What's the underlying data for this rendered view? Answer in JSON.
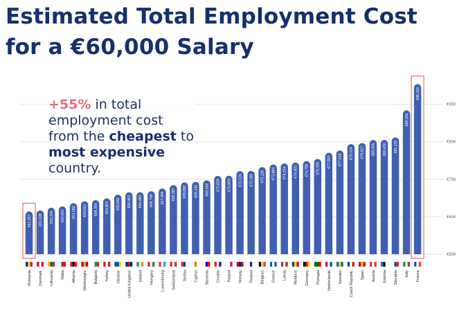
{
  "title_line1": "Estimated Total Employment Cost",
  "title_line2": "for a €60,000 Salary",
  "callout": {
    "pct": "+55%",
    "t1": " in total employment cost from the ",
    "b1": "cheapest",
    "t2": " to ",
    "b2": "most expensive",
    "t3": " country."
  },
  "colors": {
    "bar": "#3f5fb0",
    "highlight": "#e07074",
    "title": "#16306b",
    "grid": "#e6e6e6"
  },
  "chart_data": {
    "type": "bar",
    "title": "Estimated Total Employment Cost for a €60,000 Salary",
    "xlabel": "",
    "ylabel": "",
    "ylim": [
      50000,
      95000
    ],
    "yticks": [
      50000,
      60000,
      70000,
      80000,
      90000
    ],
    "ytick_labels": [
      "€50K",
      "€60K",
      "€70K",
      "€80K",
      "€90K"
    ],
    "highlighted": [
      "Romania",
      "France"
    ],
    "categories": [
      "Romania",
      "Denmark",
      "Lithuania",
      "Malta",
      "Albania",
      "Montenegro",
      "Bulgaria",
      "Turkey",
      "Ukraine",
      "United Kingdom",
      "Ireland",
      "Hungary",
      "Luxembourg",
      "Switzerland",
      "Serbia",
      "Cyprus",
      "Slovenia",
      "Croatia",
      "Poland",
      "Norway",
      "Finland",
      "Belgium",
      "Greece",
      "Latvia",
      "Moldova",
      "Germany",
      "Portugal",
      "Netherlands",
      "Sweden",
      "Czech Republic",
      "Spain",
      "Austria",
      "Estonia",
      "Slovakia",
      "Italy",
      "France"
    ],
    "values": [
      61357,
      61628,
      62346,
      62691,
      63580,
      64062,
      64354,
      64853,
      65842,
      66463,
      66490,
      66749,
      67494,
      68387,
      69090,
      69240,
      69660,
      70828,
      70869,
      72126,
      72180,
      73190,
      73884,
      74154,
      74400,
      74798,
      75350,
      77004,
      77618,
      79314,
      79617,
      80406,
      80430,
      81120,
      88326,
      95310
    ],
    "value_labels": [
      "€61,357",
      "€61,628",
      "€62,346",
      "€62,691",
      "€63,580",
      "€64,062",
      "€64,354",
      "€64,853",
      "€65,842",
      "€66,463",
      "€66,490",
      "€66,749",
      "€67,494",
      "€68,387",
      "€69,090",
      "€69,240",
      "€69,660",
      "€70,828",
      "€70,869",
      "€72,126",
      "€72,180",
      "€73,190",
      "€73,884",
      "€74,154",
      "€74,400",
      "€74,798",
      "€75,350",
      "€77,004",
      "€77,618",
      "€79,314",
      "€79,617",
      "€80,406",
      "€80,430",
      "€81,120",
      "€88,326",
      "€95,310"
    ],
    "flags": [
      [
        "#002b7f",
        "#fcd116",
        "#ce1126"
      ],
      [
        "#c8102e",
        "#ffffff",
        "#c8102e"
      ],
      [
        "#fdb913",
        "#006a44",
        "#c1272d"
      ],
      [
        "#ffffff",
        "#cf142b",
        "#cf142b"
      ],
      [
        "#e41e20",
        "#000000",
        "#e41e20"
      ],
      [
        "#c40308",
        "#d4af37",
        "#c40308"
      ],
      [
        "#ffffff",
        "#00966e",
        "#d62612"
      ],
      [
        "#e30a17",
        "#ffffff",
        "#e30a17"
      ],
      [
        "#0057b7",
        "#0057b7",
        "#ffd700"
      ],
      [
        "#012169",
        "#c8102e",
        "#012169"
      ],
      [
        "#169b62",
        "#ffffff",
        "#ff883e"
      ],
      [
        "#ce2939",
        "#ffffff",
        "#477050"
      ],
      [
        "#ed2939",
        "#ffffff",
        "#00a1de"
      ],
      [
        "#d52b1e",
        "#ffffff",
        "#d52b1e"
      ],
      [
        "#c6363c",
        "#0c4076",
        "#ffffff"
      ],
      [
        "#ffffff",
        "#d57800",
        "#ffffff"
      ],
      [
        "#ffffff",
        "#0000ff",
        "#ff0000"
      ],
      [
        "#ff0000",
        "#ffffff",
        "#171796"
      ],
      [
        "#ffffff",
        "#ffffff",
        "#dc143c"
      ],
      [
        "#ba0c2f",
        "#00205b",
        "#ba0c2f"
      ],
      [
        "#ffffff",
        "#002f6c",
        "#ffffff"
      ],
      [
        "#000000",
        "#fdda24",
        "#ef3340"
      ],
      [
        "#0d5eaf",
        "#ffffff",
        "#0d5eaf"
      ],
      [
        "#9e3039",
        "#ffffff",
        "#9e3039"
      ],
      [
        "#003da5",
        "#ffd200",
        "#cc092f"
      ],
      [
        "#000000",
        "#dd0000",
        "#ffce00"
      ],
      [
        "#006600",
        "#006600",
        "#ff0000"
      ],
      [
        "#ae1c28",
        "#ffffff",
        "#21468b"
      ],
      [
        "#006aa7",
        "#fecc00",
        "#006aa7"
      ],
      [
        "#11457e",
        "#ffffff",
        "#d7141a"
      ],
      [
        "#aa151b",
        "#f1bf00",
        "#aa151b"
      ],
      [
        "#ed2939",
        "#ffffff",
        "#ed2939"
      ],
      [
        "#0072ce",
        "#000000",
        "#ffffff"
      ],
      [
        "#ffffff",
        "#0b4ea2",
        "#ee1c25"
      ],
      [
        "#009246",
        "#ffffff",
        "#ce2b37"
      ],
      [
        "#0055a4",
        "#ffffff",
        "#ef4135"
      ]
    ]
  }
}
